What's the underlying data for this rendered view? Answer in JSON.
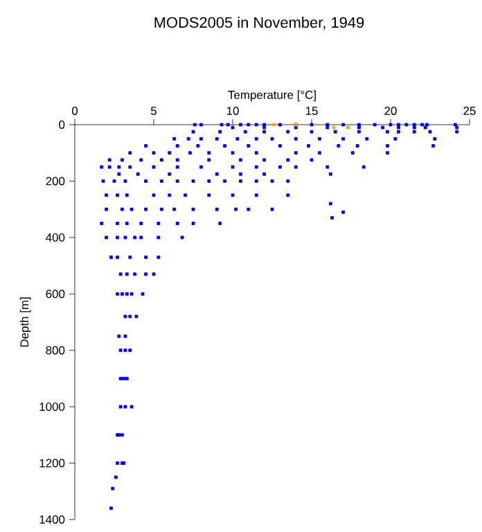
{
  "chart_data": {
    "type": "scatter",
    "title": "MODS2005 in November, 1949",
    "xlabel": "Temperature [°C]",
    "ylabel": "Depth [m]",
    "xlim": [
      0,
      25
    ],
    "xticks": [
      0,
      5,
      10,
      15,
      20,
      25
    ],
    "ylim": [
      1400,
      0
    ],
    "yticks": [
      0,
      200,
      400,
      600,
      800,
      1000,
      1200,
      1400
    ],
    "marker": "square",
    "series": [
      {
        "color": "#0000ff",
        "x": [
          7.6,
          8,
          9.3,
          9.7,
          10.5,
          11,
          11.5,
          12,
          13,
          14,
          15,
          16,
          17,
          18,
          19,
          20,
          20.5,
          21,
          21.5,
          22,
          22.3,
          24.1,
          10,
          12,
          14,
          16,
          18,
          19.5,
          20.5,
          21.5,
          22.2,
          24.2,
          7.5,
          9.2,
          10.8,
          12,
          13.5,
          15,
          16.5,
          18,
          19.8,
          20.5,
          21.5,
          22.5,
          24.2,
          6.3,
          7.2,
          8,
          9,
          10.3,
          11.5,
          12.5,
          14,
          15.5,
          17,
          18.5,
          20.3,
          22.8,
          4.5,
          6.5,
          7.8,
          9.5,
          11,
          13,
          14.8,
          16.7,
          17.9,
          19.8,
          22.7,
          3.5,
          5,
          6,
          7.3,
          8.5,
          10,
          11.5,
          14,
          15.5,
          17.6,
          19.8,
          2.2,
          3,
          4.2,
          5.5,
          6.5,
          8.5,
          10.5,
          12,
          13.5,
          15,
          1.7,
          2.2,
          2.8,
          3.5,
          5,
          6.5,
          8,
          10,
          11.5,
          13,
          14,
          16,
          18.3,
          2.8,
          4,
          6,
          9,
          10.5,
          12,
          16.2,
          1.8,
          2.5,
          3.2,
          4.5,
          5.5,
          6.5,
          7.5,
          8.5,
          9.5,
          10.5,
          11.5,
          12.5,
          13.5,
          2,
          2.7,
          3.3,
          5,
          6,
          7,
          8.5,
          10,
          11.5,
          13.5,
          16.2,
          17,
          16.3,
          2,
          3,
          3.6,
          4.5,
          5.5,
          6.3,
          7.5,
          9,
          10.2,
          11,
          12.5,
          1.7,
          2.7,
          3.3,
          4.2,
          5.3,
          6.5,
          7.5,
          9.2,
          2,
          2.7,
          3.2,
          3.8,
          4.2,
          5.3,
          6.8,
          2.3,
          2.7,
          3.5,
          4.5,
          5.3,
          2.9,
          3.3,
          3.8,
          4.5,
          5,
          2.7,
          3,
          3.3,
          3.6,
          4.3,
          3.2,
          3.5,
          3.9,
          2.8,
          3.2,
          2.9,
          3.2,
          3.5,
          2.9,
          3.1,
          3.3,
          2.9,
          3.2,
          3.6,
          2.7,
          2.8,
          3,
          2.7,
          3,
          3.1,
          2.6,
          2.4,
          2.3
        ],
        "values": [
          0,
          0,
          0,
          0,
          0,
          0,
          0,
          0,
          0,
          0,
          0,
          0,
          0,
          0,
          0,
          0,
          0,
          0,
          0,
          0,
          0,
          0,
          10,
          10,
          10,
          10,
          10,
          10,
          10,
          10,
          10,
          10,
          25,
          25,
          25,
          25,
          25,
          25,
          25,
          25,
          25,
          25,
          25,
          25,
          25,
          50,
          50,
          50,
          50,
          50,
          50,
          50,
          50,
          50,
          50,
          50,
          50,
          50,
          75,
          75,
          75,
          75,
          75,
          75,
          75,
          75,
          75,
          75,
          75,
          100,
          100,
          100,
          100,
          100,
          100,
          100,
          100,
          100,
          100,
          100,
          125,
          125,
          125,
          125,
          125,
          125,
          125,
          125,
          125,
          125,
          150,
          150,
          150,
          150,
          150,
          150,
          150,
          150,
          150,
          150,
          150,
          150,
          150,
          175,
          175,
          175,
          175,
          175,
          175,
          175,
          200,
          200,
          200,
          200,
          200,
          200,
          200,
          200,
          200,
          200,
          200,
          200,
          200,
          250,
          250,
          250,
          250,
          250,
          250,
          250,
          250,
          250,
          250,
          280,
          310,
          330,
          300,
          300,
          300,
          300,
          300,
          300,
          300,
          300,
          300,
          300,
          300,
          350,
          350,
          350,
          350,
          350,
          350,
          350,
          350,
          400,
          400,
          400,
          400,
          400,
          400,
          400,
          470,
          470,
          470,
          470,
          470,
          530,
          530,
          530,
          530,
          530,
          600,
          600,
          600,
          600,
          600,
          680,
          680,
          680,
          750,
          750,
          800,
          800,
          800,
          900,
          900,
          900,
          1000,
          1000,
          1000,
          1100,
          1100,
          1100,
          1200,
          1200,
          1200,
          1250,
          1290,
          1360
        ]
      },
      {
        "color": "#ffa500",
        "x": [
          12.6,
          14,
          16.4,
          17.3
        ],
        "values": [
          0,
          0,
          10,
          10
        ]
      }
    ]
  }
}
